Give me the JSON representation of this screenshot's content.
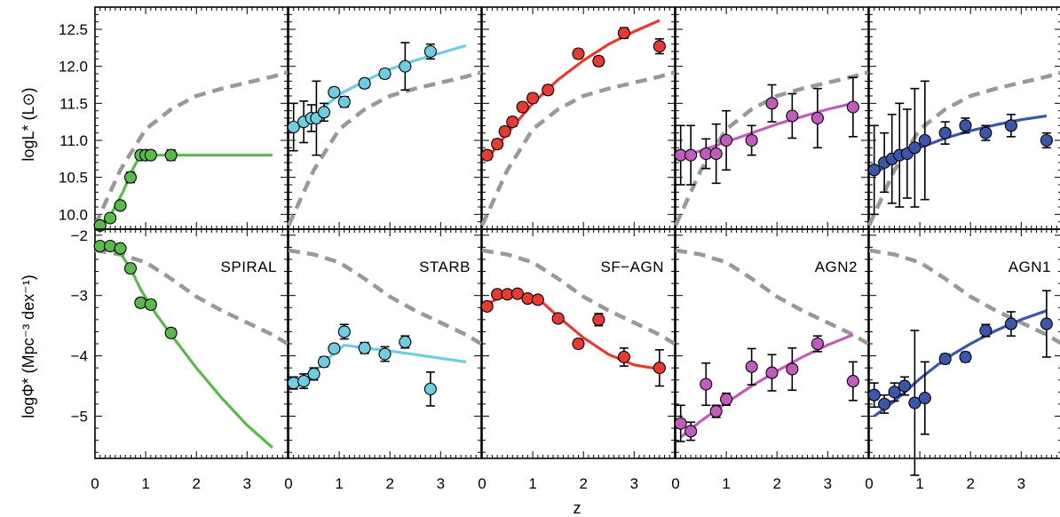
{
  "figure": {
    "xlabel": "z",
    "ylabel_top": "logL* (L⊙)",
    "ylabel_bottom": "logΦ* (Mpc⁻³ dex⁻¹)"
  },
  "chart_data": {
    "type": "scatter",
    "xlim": [
      0,
      3.8
    ],
    "xticks": [
      "0",
      "1",
      "2",
      "3"
    ],
    "rows": [
      {
        "id": "L",
        "ylabel": "logL* (L⊙)",
        "ylim": [
          9.8,
          12.8
        ],
        "yticks": [
          "10.0",
          "10.5",
          "11.0",
          "11.5",
          "12.0",
          "12.5"
        ]
      },
      {
        "id": "Phi",
        "ylabel": "logΦ* (Mpc⁻³ dex⁻¹)",
        "ylim": [
          -5.7,
          -1.9
        ],
        "yticks": [
          "−2",
          "−3",
          "−4",
          "−5"
        ]
      }
    ],
    "reference_curve": {
      "style": "gray-dashed",
      "color": "#999999",
      "L": {
        "x": [
          0,
          0.5,
          1.0,
          1.5,
          2.0,
          2.5,
          3.0,
          3.5,
          3.8
        ],
        "y": [
          9.85,
          10.6,
          11.15,
          11.42,
          11.6,
          11.7,
          11.78,
          11.86,
          11.92
        ]
      },
      "Phi": {
        "x": [
          0,
          0.5,
          1.0,
          1.5,
          2.0,
          2.5,
          3.0,
          3.5,
          3.8
        ],
        "y": [
          -2.25,
          -2.32,
          -2.45,
          -2.72,
          -3.02,
          -3.25,
          -3.45,
          -3.65,
          -3.8
        ]
      }
    },
    "panels": [
      {
        "name": "SPIRAL",
        "color": "#5bb84c",
        "L": {
          "points": [
            [
              0.1,
              9.85,
              0.05
            ],
            [
              0.3,
              9.95,
              0.05
            ],
            [
              0.5,
              10.12,
              0.05
            ],
            [
              0.7,
              10.5,
              0.07
            ],
            [
              0.9,
              10.8,
              0.06
            ],
            [
              1.0,
              10.8,
              0.06
            ],
            [
              1.1,
              10.8,
              0.06
            ],
            [
              1.5,
              10.8,
              0.07
            ]
          ],
          "fit": {
            "x": [
              0.05,
              0.3,
              0.55,
              0.75,
              0.9,
              1.0,
              2.0,
              3.0,
              3.5
            ],
            "y": [
              9.82,
              9.98,
              10.3,
              10.62,
              10.8,
              10.8,
              10.8,
              10.8,
              10.8
            ]
          }
        },
        "Phi": {
          "points": [
            [
              0.1,
              -2.18,
              0.06
            ],
            [
              0.3,
              -2.18,
              0.06
            ],
            [
              0.5,
              -2.22,
              0.06
            ],
            [
              0.7,
              -2.55,
              0.07
            ],
            [
              0.9,
              -3.12,
              0.07
            ],
            [
              1.1,
              -3.15,
              0.07
            ],
            [
              1.5,
              -3.62,
              0.07
            ]
          ],
          "fit": {
            "x": [
              0.0,
              0.3,
              0.5,
              0.7,
              0.9,
              1.2,
              1.5,
              2.0,
              2.5,
              3.0,
              3.5
            ],
            "y": [
              -2.15,
              -2.2,
              -2.3,
              -2.55,
              -2.9,
              -3.3,
              -3.65,
              -4.2,
              -4.7,
              -5.15,
              -5.52
            ]
          }
        }
      },
      {
        "name": "STARB",
        "color": "#6fcde0",
        "L": {
          "points": [
            [
              0.1,
              11.18,
              0.32
            ],
            [
              0.3,
              11.25,
              0.28
            ],
            [
              0.45,
              11.3,
              0.18
            ],
            [
              0.55,
              11.3,
              0.5
            ],
            [
              0.7,
              11.38,
              0.12
            ],
            [
              0.9,
              11.65,
              0.06
            ],
            [
              1.1,
              11.52,
              0.07
            ],
            [
              1.5,
              11.77,
              0.06
            ],
            [
              1.9,
              11.9,
              0.06
            ],
            [
              2.3,
              12.0,
              0.32
            ],
            [
              2.8,
              12.2,
              0.1
            ]
          ],
          "fit": {
            "x": [
              0.1,
              0.5,
              1.0,
              1.5,
              2.0,
              2.5,
              3.0,
              3.5
            ],
            "y": [
              11.12,
              11.33,
              11.62,
              11.8,
              11.96,
              12.08,
              12.18,
              12.28
            ]
          }
        },
        "Phi": {
          "points": [
            [
              0.1,
              -4.45,
              0.1
            ],
            [
              0.3,
              -4.42,
              0.12
            ],
            [
              0.5,
              -4.3,
              0.1
            ],
            [
              0.7,
              -4.1,
              0.08
            ],
            [
              0.9,
              -3.88,
              0.07
            ],
            [
              1.1,
              -3.6,
              0.12
            ],
            [
              1.5,
              -3.87,
              0.09
            ],
            [
              1.9,
              -3.97,
              0.12
            ],
            [
              2.3,
              -3.77,
              0.1
            ],
            [
              2.8,
              -4.55,
              0.28
            ]
          ],
          "fit": {
            "x": [
              0.1,
              0.5,
              0.8,
              1.1,
              1.5,
              2.0,
              2.5,
              3.0,
              3.5
            ],
            "y": [
              -4.55,
              -4.28,
              -4.03,
              -3.82,
              -3.87,
              -3.92,
              -3.98,
              -4.04,
              -4.1
            ]
          }
        }
      },
      {
        "name": "SF−AGN",
        "color": "#e63a33",
        "L": {
          "points": [
            [
              0.1,
              10.8,
              0.06
            ],
            [
              0.3,
              10.95,
              0.06
            ],
            [
              0.45,
              11.12,
              0.06
            ],
            [
              0.6,
              11.25,
              0.06
            ],
            [
              0.8,
              11.45,
              0.06
            ],
            [
              1.0,
              11.57,
              0.06
            ],
            [
              1.3,
              11.68,
              0.06
            ],
            [
              1.9,
              12.17,
              0.06
            ],
            [
              2.3,
              12.07,
              0.06
            ],
            [
              2.8,
              12.45,
              0.07
            ],
            [
              3.5,
              12.27,
              0.1
            ]
          ],
          "fit": {
            "x": [
              0.1,
              0.5,
              1.0,
              1.5,
              2.0,
              2.5,
              3.0,
              3.5
            ],
            "y": [
              10.75,
              11.1,
              11.5,
              11.82,
              12.08,
              12.3,
              12.47,
              12.62
            ]
          }
        },
        "Phi": {
          "points": [
            [
              0.1,
              -3.18,
              0.06
            ],
            [
              0.3,
              -2.98,
              0.06
            ],
            [
              0.5,
              -2.98,
              0.06
            ],
            [
              0.7,
              -2.97,
              0.06
            ],
            [
              0.9,
              -3.05,
              0.06
            ],
            [
              1.1,
              -3.07,
              0.06
            ],
            [
              1.5,
              -3.38,
              0.06
            ],
            [
              1.9,
              -3.8,
              0.07
            ],
            [
              2.3,
              -3.4,
              0.1
            ],
            [
              2.8,
              -4.02,
              0.15
            ],
            [
              3.5,
              -4.2,
              0.3
            ]
          ],
          "fit": {
            "x": [
              0.0,
              0.3,
              0.6,
              0.9,
              1.2,
              1.5,
              2.0,
              2.5,
              3.0,
              3.5
            ],
            "y": [
              -3.2,
              -3.05,
              -2.98,
              -3.0,
              -3.12,
              -3.35,
              -3.7,
              -3.98,
              -4.15,
              -4.22
            ]
          }
        }
      },
      {
        "name": "AGN2",
        "color": "#c05dbc",
        "L": {
          "points": [
            [
              0.1,
              10.8,
              0.4
            ],
            [
              0.3,
              10.8,
              0.4
            ],
            [
              0.6,
              10.82,
              0.2
            ],
            [
              0.8,
              10.82,
              0.4
            ],
            [
              1.0,
              11.0,
              0.4
            ],
            [
              1.5,
              11.0,
              0.2
            ],
            [
              1.9,
              11.5,
              0.25
            ],
            [
              2.3,
              11.33,
              0.3
            ],
            [
              2.8,
              11.3,
              0.4
            ],
            [
              3.5,
              11.45,
              0.4
            ]
          ],
          "fit": {
            "x": [
              0.1,
              0.5,
              1.0,
              1.5,
              2.0,
              2.5,
              3.0,
              3.5
            ],
            "y": [
              10.78,
              10.86,
              10.98,
              11.1,
              11.22,
              11.32,
              11.42,
              11.5
            ]
          }
        },
        "Phi": {
          "points": [
            [
              0.1,
              -5.12,
              0.3
            ],
            [
              0.3,
              -5.25,
              0.15
            ],
            [
              0.6,
              -4.47,
              0.35
            ],
            [
              0.8,
              -4.92,
              0.1
            ],
            [
              1.0,
              -4.72,
              0.1
            ],
            [
              1.5,
              -4.18,
              0.3
            ],
            [
              1.9,
              -4.28,
              0.3
            ],
            [
              2.3,
              -4.22,
              0.35
            ],
            [
              2.8,
              -3.8,
              0.13
            ],
            [
              3.5,
              -4.42,
              0.32
            ]
          ],
          "fit": {
            "x": [
              0.1,
              0.5,
              1.0,
              1.5,
              2.0,
              2.5,
              3.0,
              3.5
            ],
            "y": [
              -5.35,
              -5.08,
              -4.78,
              -4.5,
              -4.25,
              -4.02,
              -3.82,
              -3.65
            ]
          }
        }
      },
      {
        "name": "AGN1",
        "color": "#3d55a8",
        "L": {
          "points": [
            [
              0.1,
              10.6,
              0.6
            ],
            [
              0.3,
              10.7,
              0.4
            ],
            [
              0.45,
              10.75,
              0.6
            ],
            [
              0.6,
              10.8,
              0.7
            ],
            [
              0.75,
              10.82,
              0.6
            ],
            [
              0.9,
              10.9,
              0.8
            ],
            [
              1.1,
              11.0,
              0.8
            ],
            [
              1.5,
              11.1,
              0.15
            ],
            [
              1.9,
              11.2,
              0.1
            ],
            [
              2.3,
              11.1,
              0.1
            ],
            [
              2.8,
              11.2,
              0.15
            ],
            [
              3.5,
              11.0,
              0.1
            ]
          ],
          "fit": {
            "x": [
              0.1,
              0.5,
              1.0,
              1.5,
              2.0,
              2.5,
              3.0,
              3.5
            ],
            "y": [
              10.55,
              10.72,
              10.9,
              11.03,
              11.13,
              11.21,
              11.28,
              11.33
            ]
          }
        },
        "Phi": {
          "points": [
            [
              0.1,
              -4.65,
              0.2
            ],
            [
              0.3,
              -4.8,
              0.15
            ],
            [
              0.5,
              -4.6,
              0.15
            ],
            [
              0.7,
              -4.5,
              0.15
            ],
            [
              0.9,
              -4.78,
              1.2
            ],
            [
              1.1,
              -4.7,
              0.6
            ],
            [
              1.5,
              -4.05,
              0.08
            ],
            [
              1.9,
              -4.02,
              0.08
            ],
            [
              2.3,
              -3.58,
              0.1
            ],
            [
              2.8,
              -3.47,
              0.2
            ],
            [
              3.5,
              -3.47,
              0.55
            ]
          ],
          "fit": {
            "x": [
              0.1,
              0.5,
              1.0,
              1.5,
              2.0,
              2.5,
              3.0,
              3.5
            ],
            "y": [
              -5.0,
              -4.75,
              -4.38,
              -4.05,
              -3.8,
              -3.58,
              -3.4,
              -3.25
            ]
          }
        }
      }
    ]
  }
}
